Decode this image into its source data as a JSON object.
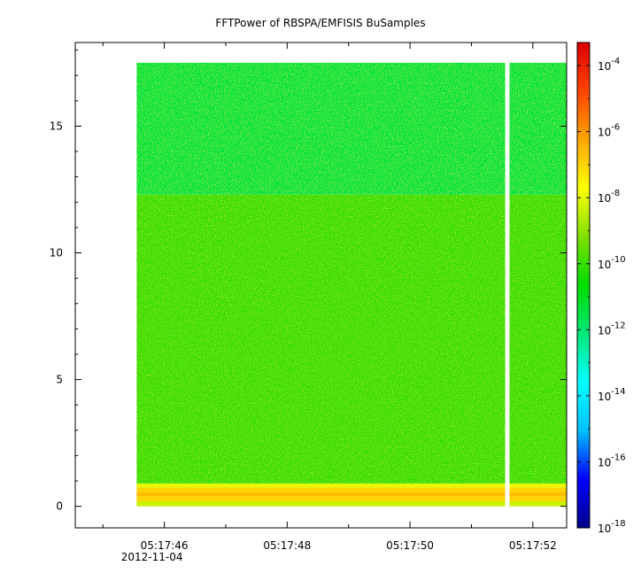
{
  "chart_data": {
    "type": "heatmap",
    "title": "FFTPower of RBSPA/EMFISIS  BuSamples",
    "xlabel": "",
    "ylabel": "",
    "x_ticks": [
      {
        "value": 1.0,
        "label": "05:17:46",
        "sublabel": "2012-11-04"
      },
      {
        "value": 3.0,
        "label": "05:17:48"
      },
      {
        "value": 5.0,
        "label": "05:17:50"
      },
      {
        "value": 7.0,
        "label": "05:17:52"
      }
    ],
    "x_minor_ticks": [
      0.0,
      2.0,
      4.0,
      6.0
    ],
    "xlim": [
      -0.45,
      7.55
    ],
    "y_ticks": [
      0,
      5,
      10,
      15
    ],
    "ylim": [
      -0.85,
      18.3
    ],
    "grid": false,
    "data_extent": {
      "x_start": 0.55,
      "x_end": 7.55,
      "y_start": 0,
      "y_end": 17.5
    },
    "gap": {
      "x_start": 6.55,
      "x_end": 6.62
    },
    "bands": [
      {
        "y_from": 0.0,
        "y_to": 0.2,
        "log10_power": -8.3
      },
      {
        "y_from": 0.2,
        "y_to": 0.4,
        "log10_power": -7.0
      },
      {
        "y_from": 0.4,
        "y_to": 0.55,
        "log10_power": -6.6
      },
      {
        "y_from": 0.55,
        "y_to": 0.75,
        "log10_power": -7.0
      },
      {
        "y_from": 0.75,
        "y_to": 0.9,
        "log10_power": -8.0
      },
      {
        "y_from": 0.9,
        "y_to": 12.3,
        "log10_power": -10.0
      },
      {
        "y_from": 12.3,
        "y_to": 17.5,
        "log10_power": -11.4
      }
    ],
    "colorbar": {
      "scale": "log",
      "range": [
        -18,
        -3.3
      ],
      "tick_exponents": [
        -4,
        -6,
        -8,
        -10,
        -12,
        -14,
        -16,
        -18
      ],
      "tick_labels": [
        "-4",
        "-6",
        "-8",
        "-10",
        "-12",
        "-14",
        "-16",
        "-18"
      ],
      "tick_base": "10",
      "colors": [
        "#00008b",
        "#0000ff",
        "#00bfff",
        "#00ffff",
        "#00e87a",
        "#00dd00",
        "#7fe000",
        "#ffff00",
        "#ffa500",
        "#ff4400",
        "#dd0000"
      ]
    }
  }
}
